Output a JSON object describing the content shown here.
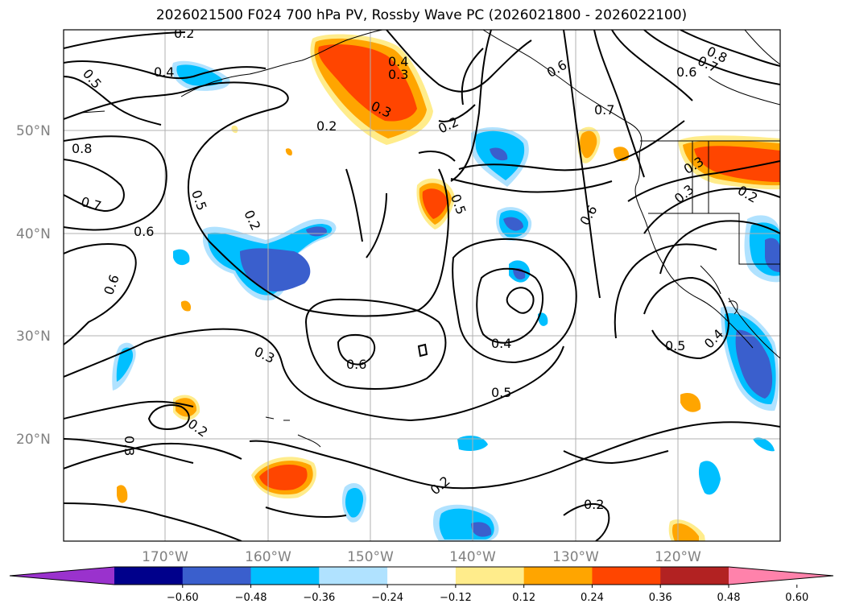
{
  "title": "2026021500 F024 700 hPa PV, Rossby Wave PC (2026021800 - 2026022100)",
  "map": {
    "lat_labels": [
      "50°N",
      "40°N",
      "30°N",
      "20°N"
    ],
    "lon_labels": [
      "170°W",
      "160°W",
      "150°W",
      "140°W",
      "130°W",
      "120°W"
    ],
    "contour_labels": [
      "0.2",
      "0.4",
      "0.5",
      "0.8",
      "0.7",
      "0.6",
      "0.5",
      "0.2",
      "0.6",
      "0.3",
      "0.2",
      "0.4",
      "0.3",
      "0.3",
      "0.2",
      "0.5",
      "0.6",
      "0.4",
      "0.6",
      "0.5",
      "0.2",
      "0.2",
      "0.3",
      "0.2",
      "0.7",
      "0.8",
      "0.6",
      "0.7",
      "0.3",
      "0.2",
      "0.5",
      "0.4",
      "0.3",
      "0.6"
    ],
    "colors": {
      "neg_060": "#9a32cd",
      "neg_048": "#00008b",
      "neg_036": "#3a5fcd",
      "neg_024": "#00bfff",
      "neg_012": "#b0e2ff",
      "pos_012": "#ffec8b",
      "pos_024": "#ffa500",
      "pos_036": "#ff4500",
      "pos_048": "#b22222",
      "pos_060": "#ff82ab"
    }
  },
  "colorbar": {
    "ticks": [
      "−0.60",
      "−0.48",
      "−0.36",
      "−0.24",
      "−0.12",
      "0.12",
      "0.24",
      "0.36",
      "0.48",
      "0.60"
    ],
    "colors": [
      "#9a32cd",
      "#00008b",
      "#3a5fcd",
      "#00bfff",
      "#b0e2ff",
      "#ffffff",
      "#ffec8b",
      "#ffa500",
      "#ff4500",
      "#b22222",
      "#ff82ab"
    ]
  }
}
